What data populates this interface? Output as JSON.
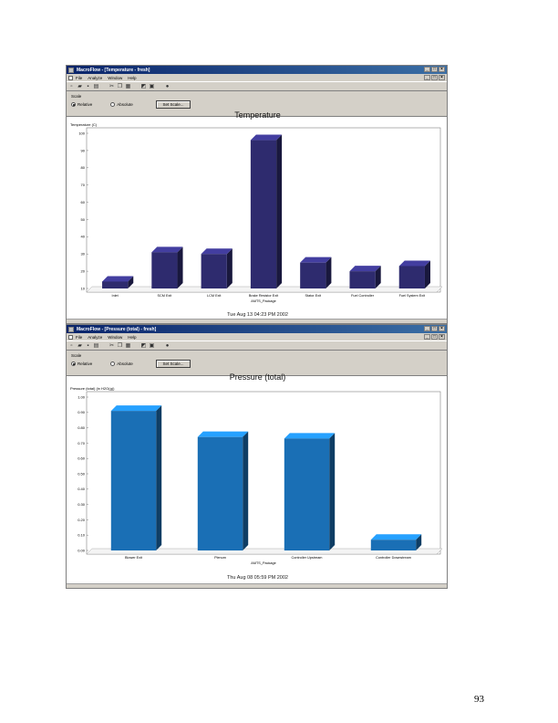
{
  "page_number": "93",
  "windows": [
    {
      "title": "MacroFlow - [Temperature - fresh]",
      "menu": [
        "File",
        "Analyze",
        "Window",
        "Help"
      ],
      "scale": {
        "label": "Scale",
        "relative": "Relative",
        "absolute": "Absolute",
        "button": "Set Scale..."
      },
      "timestamp": "Tue Aug 13 04:23 PM 2002"
    },
    {
      "title": "MacroFlow - [Pressure (total) - fresh]",
      "menu": [
        "File",
        "Analyze",
        "Window",
        "Help"
      ],
      "scale": {
        "label": "Scale",
        "relative": "Relative",
        "absolute": "Absolute",
        "button": "Set Scale..."
      },
      "timestamp": "Thu Aug 08 05:59 PM 2002"
    }
  ],
  "chart_data": [
    {
      "type": "bar",
      "title": "Temperature",
      "ylabel": "Temperature (C)",
      "xlabel": "AMTS_Package",
      "categories": [
        "Inlet",
        "SCM Exit",
        "LCM Exit",
        "Brake Resistor Exit",
        "Stator Exit",
        "Fuel Controller",
        "Fuel System Exit"
      ],
      "values": [
        14,
        31,
        30,
        96,
        25,
        20,
        23
      ],
      "ylim": [
        10,
        100
      ],
      "yticks": [
        "10",
        "20",
        "30",
        "40",
        "50",
        "60",
        "70",
        "80",
        "90",
        "100"
      ],
      "color": "#2e2b6e",
      "grid": false
    },
    {
      "type": "bar",
      "title": "Pressure (total)",
      "ylabel": "Pressure (total) (in H2O(g))",
      "xlabel": "AMTS_Package",
      "categories": [
        "Blower Exit",
        "Plenum",
        "Controller Upstream",
        "Controller Downstream"
      ],
      "values": [
        0.91,
        0.74,
        0.73,
        0.07
      ],
      "ylim": [
        0,
        1
      ],
      "yticks": [
        "0.00",
        "0.10",
        "0.20",
        "0.30",
        "0.40",
        "0.50",
        "0.60",
        "0.70",
        "0.80",
        "0.90",
        "1.00"
      ],
      "color": "#1a6fb5",
      "grid": false
    }
  ]
}
